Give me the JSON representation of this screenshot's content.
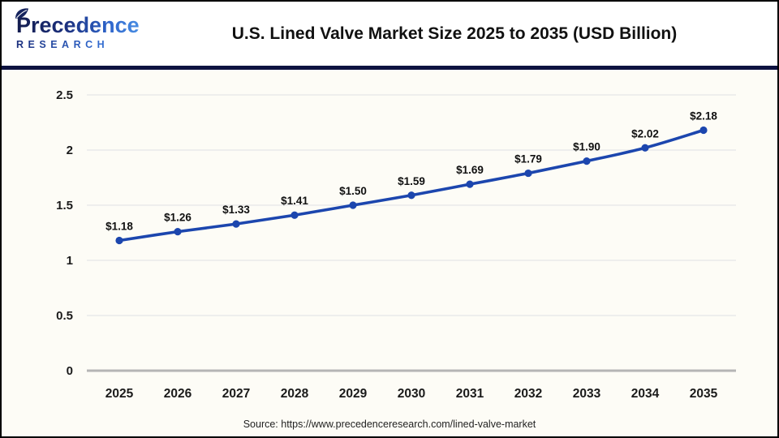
{
  "header": {
    "logo": {
      "brand": "Precedence",
      "sub": "RESEARCH"
    },
    "title": "U.S. Lined Valve Market Size 2025 to 2035 (USD Billion)"
  },
  "chart_data": {
    "type": "line",
    "title": "U.S. Lined Valve Market Size 2025 to 2035 (USD Billion)",
    "categories": [
      "2025",
      "2026",
      "2027",
      "2028",
      "2029",
      "2030",
      "2031",
      "2032",
      "2033",
      "2034",
      "2035"
    ],
    "values": [
      1.18,
      1.26,
      1.33,
      1.41,
      1.5,
      1.59,
      1.69,
      1.79,
      1.9,
      2.02,
      2.18
    ],
    "point_labels": [
      "$1.18",
      "$1.26",
      "$1.33",
      "$1.41",
      "$1.50",
      "$1.59",
      "$1.69",
      "$1.79",
      "$1.90",
      "$2.02",
      "$2.18"
    ],
    "xlabel": "",
    "ylabel": "",
    "ylim": [
      0,
      2.5
    ],
    "yticks": [
      0,
      0.5,
      1,
      1.5,
      2,
      2.5
    ],
    "ytick_labels": [
      "0",
      "0.5",
      "1",
      "1.5",
      "2",
      "2.5"
    ],
    "grid": true,
    "legend_position": "none",
    "line_color": "#1c46ae",
    "marker_color": "#1c46ae",
    "grid_color": "#eaeaea",
    "axis_line_color": "#b5b5b5",
    "label_color": "#111111"
  },
  "brand_colors": {
    "navy": "#131c4e",
    "blue": "#4e96e8",
    "divider": "#0d1240"
  },
  "footer": {
    "source": "Source: https://www.precedenceresearch.com/lined-valve-market"
  }
}
